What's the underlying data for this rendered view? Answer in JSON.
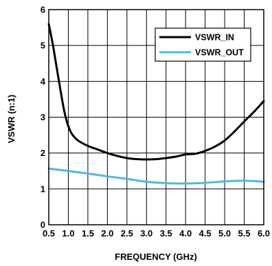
{
  "chart_data": {
    "type": "line",
    "title": "",
    "xlabel": "FREQUENCY (GHz)",
    "ylabel": "VSWR (n:1)",
    "xlim": [
      0.5,
      6.0
    ],
    "ylim": [
      0,
      6
    ],
    "xticks": [
      "0.5",
      "1.0",
      "1.5",
      "2.0",
      "2.5",
      "3.0",
      "3.5",
      "4.0",
      "4.5",
      "5.0",
      "5.5",
      "6.0"
    ],
    "yticks": [
      "0",
      "1",
      "2",
      "3",
      "4",
      "5",
      "6"
    ],
    "grid": true,
    "legend": "top-right",
    "series": [
      {
        "name": "VSWR_IN",
        "color": "#000000",
        "x": [
          0.5,
          0.6,
          0.7,
          0.8,
          0.9,
          1.0,
          1.1,
          1.25,
          1.5,
          1.75,
          2.0,
          2.25,
          2.5,
          2.75,
          3.0,
          3.25,
          3.5,
          3.75,
          4.0,
          4.25,
          4.5,
          4.75,
          5.0,
          5.25,
          5.5,
          5.75,
          6.0
        ],
        "y": [
          5.6,
          5.05,
          4.4,
          3.75,
          3.15,
          2.75,
          2.52,
          2.35,
          2.2,
          2.1,
          2.0,
          1.92,
          1.86,
          1.83,
          1.82,
          1.83,
          1.86,
          1.9,
          1.96,
          1.98,
          2.06,
          2.18,
          2.35,
          2.6,
          2.88,
          3.15,
          3.45
        ]
      },
      {
        "name": "VSWR_OUT",
        "color": "#4db8e8",
        "x": [
          0.5,
          1.0,
          1.5,
          2.0,
          2.5,
          3.0,
          3.5,
          4.0,
          4.5,
          5.0,
          5.5,
          6.0
        ],
        "y": [
          1.57,
          1.5,
          1.43,
          1.35,
          1.28,
          1.2,
          1.16,
          1.15,
          1.17,
          1.21,
          1.23,
          1.2
        ]
      }
    ]
  }
}
